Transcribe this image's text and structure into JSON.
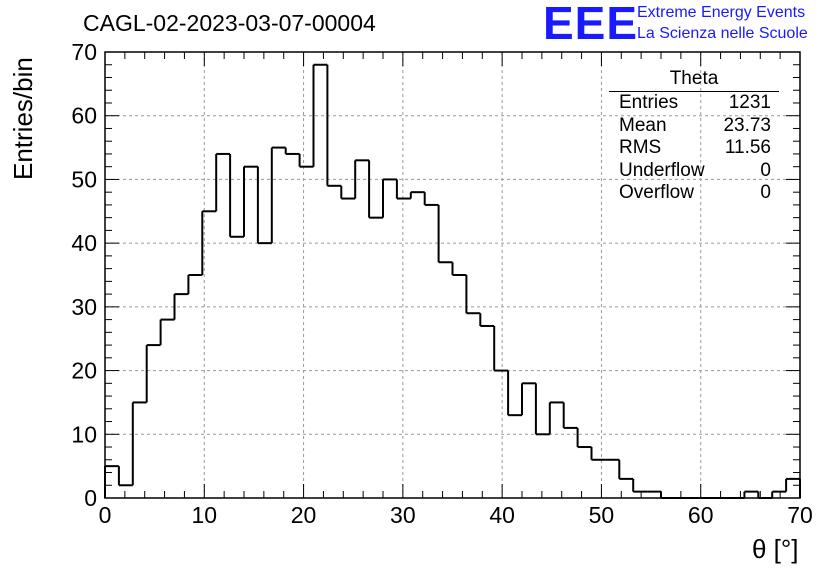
{
  "header": {
    "run_title": "CAGL-02-2023-03-07-00004",
    "logo_text": "EEE",
    "logo_line1": "Extreme Energy Events",
    "logo_line2": "La Scienza nelle Scuole"
  },
  "stats_box": {
    "title": "Theta",
    "rows": [
      {
        "label": "Entries",
        "value": "1231"
      },
      {
        "label": "Mean",
        "value": "23.73"
      },
      {
        "label": "RMS",
        "value": "11.56"
      },
      {
        "label": "Underflow",
        "value": "0"
      },
      {
        "label": "Overflow",
        "value": "0"
      }
    ]
  },
  "colors": {
    "histogram_line": "#000000",
    "grid": "#9a9a9a",
    "logo": "#1a1aff"
  },
  "chart_data": {
    "type": "histogram",
    "title": "CAGL-02-2023-03-07-00004",
    "xlabel": "θ [°]",
    "ylabel": "Entries/bin",
    "xlim": [
      0,
      70
    ],
    "ylim": [
      0,
      70
    ],
    "x_ticks": [
      0,
      10,
      20,
      30,
      40,
      50,
      60,
      70
    ],
    "y_ticks": [
      0,
      10,
      20,
      30,
      40,
      50,
      60,
      70
    ],
    "grid": true,
    "bin_width": 1.4,
    "bin_edges_start": 0,
    "values": [
      5,
      2,
      15,
      24,
      28,
      32,
      35,
      45,
      54,
      41,
      52,
      40,
      55,
      54,
      52,
      68,
      49,
      47,
      53,
      44,
      50,
      47,
      48,
      46,
      37,
      35,
      29,
      27,
      20,
      13,
      18,
      10,
      15,
      11,
      8,
      6,
      6,
      3,
      1,
      1,
      0,
      0,
      0,
      0,
      0,
      0,
      1,
      0,
      1,
      3
    ]
  }
}
